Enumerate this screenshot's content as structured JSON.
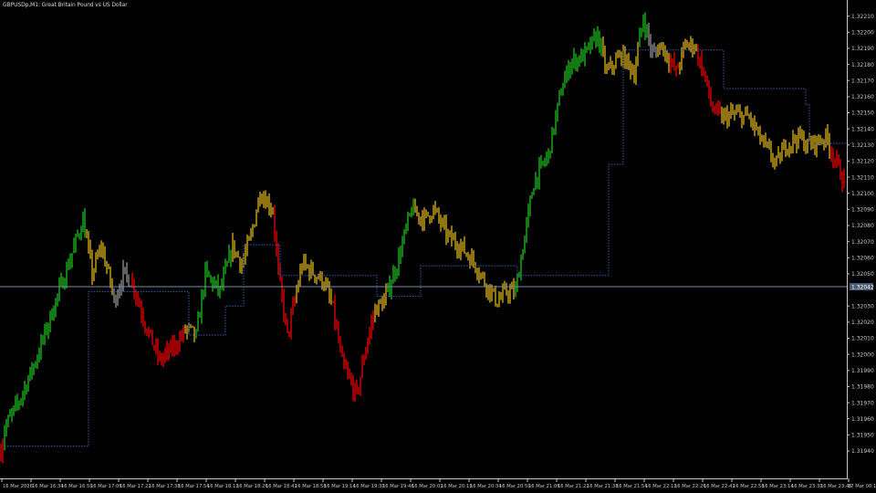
{
  "header": {
    "title": "GBPUSDp,M1:  Great Britain Pound vs US Dollar"
  },
  "chart_data": {
    "type": "bar",
    "title": "GBPUSDp,M1:  Great Britain Pound vs US Dollar",
    "background": "#000000",
    "grid": false,
    "ylim": [
      1.31923,
      1.3222
    ],
    "yticks": [
      "1.32210",
      "1.32200",
      "1.32190",
      "1.32180",
      "1.32170",
      "1.32160",
      "1.32150",
      "1.32140",
      "1.32130",
      "1.32120",
      "1.32110",
      "1.32100",
      "1.32090",
      "1.32080",
      "1.32070",
      "1.32060",
      "1.32050",
      "1.32040",
      "1.32030",
      "1.32020",
      "1.32010",
      "1.32000",
      "1.31990",
      "1.31980",
      "1.31970",
      "1.31960",
      "1.31950",
      "1.31940"
    ],
    "xticks": [
      "16 Mar 2026",
      "16 Mar 16:34",
      "16 Mar 16:50",
      "16 Mar 17:06",
      "16 Mar 17:22",
      "16 Mar 17:38",
      "16 Mar 17:54",
      "16 Mar 18:10",
      "16 Mar 18:26",
      "16 Mar 18:42",
      "16 Mar 18:58",
      "16 Mar 19:14",
      "16 Mar 19:30",
      "16 Mar 19:46",
      "16 Mar 20:02",
      "16 Mar 20:18",
      "16 Mar 20:34",
      "16 Mar 20:50",
      "16 Mar 21:06",
      "16 Mar 21:22",
      "16 Mar 21:38",
      "16 Mar 21:54",
      "16 Mar 22:10",
      "16 Mar 22:26",
      "16 Mar 22:42",
      "16 Mar 22:58",
      "16 Mar 23:14",
      "16 Mar 23:30",
      "16 Mar 23:46"
    ],
    "xtick_last": "17 Mar 00:15",
    "current_price": "1.32042",
    "current_price_value": 1.32042,
    "price_path": [
      [
        "16:18",
        1.3194
      ],
      [
        "16:20",
        1.31954
      ],
      [
        "16:28",
        1.31971
      ],
      [
        "16:38",
        1.31999
      ],
      [
        "16:48",
        1.32033
      ],
      [
        "16:55",
        1.32056
      ],
      [
        "17:03",
        1.32084
      ],
      [
        "17:08",
        1.3205
      ],
      [
        "17:13",
        1.32067
      ],
      [
        "17:18",
        1.32045
      ],
      [
        "17:20",
        1.32033
      ],
      [
        "17:25",
        1.3205
      ],
      [
        "17:30",
        1.32045
      ],
      [
        "17:38",
        1.32016
      ],
      [
        "17:45",
        1.31996
      ],
      [
        "17:53",
        1.32005
      ],
      [
        "18:00",
        1.32016
      ],
      [
        "18:05",
        1.32011
      ],
      [
        "18:10",
        1.3205
      ],
      [
        "18:18",
        1.32039
      ],
      [
        "18:25",
        1.32067
      ],
      [
        "18:30",
        1.32056
      ],
      [
        "18:35",
        1.32073
      ],
      [
        "18:40",
        1.32101
      ],
      [
        "18:47",
        1.3209
      ],
      [
        "18:50",
        1.3205
      ],
      [
        "18:55",
        1.32011
      ],
      [
        "18:58",
        1.32028
      ],
      [
        "19:03",
        1.32056
      ],
      [
        "19:10",
        1.3205
      ],
      [
        "19:15",
        1.32045
      ],
      [
        "19:20",
        1.32028
      ],
      [
        "19:25",
        1.31994
      ],
      [
        "19:33",
        1.31974
      ],
      [
        "19:38",
        1.32005
      ],
      [
        "19:43",
        1.32028
      ],
      [
        "19:48",
        1.32033
      ],
      [
        "19:55",
        1.32056
      ],
      [
        "20:03",
        1.3209
      ],
      [
        "20:10",
        1.32084
      ],
      [
        "20:15",
        1.3209
      ],
      [
        "20:23",
        1.32073
      ],
      [
        "20:30",
        1.32067
      ],
      [
        "20:38",
        1.32056
      ],
      [
        "20:43",
        1.32045
      ],
      [
        "20:50",
        1.32033
      ],
      [
        "20:55",
        1.32039
      ],
      [
        "21:00",
        1.32039
      ],
      [
        "21:05",
        1.32073
      ],
      [
        "21:10",
        1.32107
      ],
      [
        "21:18",
        1.32124
      ],
      [
        "21:25",
        1.32164
      ],
      [
        "21:30",
        1.32181
      ],
      [
        "21:38",
        1.32186
      ],
      [
        "21:45",
        1.32198
      ],
      [
        "21:50",
        1.32175
      ],
      [
        "21:58",
        1.32186
      ],
      [
        "22:05",
        1.32175
      ],
      [
        "22:10",
        1.32209
      ],
      [
        "22:15",
        1.32186
      ],
      [
        "22:20",
        1.32192
      ],
      [
        "22:28",
        1.32175
      ],
      [
        "22:33",
        1.32192
      ],
      [
        "22:38",
        1.32192
      ],
      [
        "22:43",
        1.32175
      ],
      [
        "22:48",
        1.32152
      ],
      [
        "22:53",
        1.32147
      ],
      [
        "23:00",
        1.32149
      ],
      [
        "23:08",
        1.32147
      ],
      [
        "23:15",
        1.32132
      ],
      [
        "23:23",
        1.32118
      ],
      [
        "23:28",
        1.3213
      ],
      [
        "23:35",
        1.32135
      ],
      [
        "23:40",
        1.3213
      ],
      [
        "23:45",
        1.32132
      ],
      [
        "23:50",
        1.32135
      ],
      [
        "23:55",
        1.32121
      ],
      [
        "00:00",
        1.32107
      ]
    ],
    "bar_colors": [
      [
        "16:18",
        "#ff0000"
      ],
      [
        "16:20",
        "#22cc22"
      ],
      [
        "17:05",
        "#f0c020"
      ],
      [
        "17:20",
        "#a0a0a0"
      ],
      [
        "17:30",
        "#ff0000"
      ],
      [
        "17:59",
        "#f0c020"
      ],
      [
        "18:05",
        "#22cc22"
      ],
      [
        "18:25",
        "#f0c020"
      ],
      [
        "18:48",
        "#ff0000"
      ],
      [
        "19:00",
        "#f0c020"
      ],
      [
        "19:20",
        "#ff0000"
      ],
      [
        "19:43",
        "#f0c020"
      ],
      [
        "19:50",
        "#22cc22"
      ],
      [
        "20:05",
        "#f0c020"
      ],
      [
        "21:00",
        "#22cc22"
      ],
      [
        "21:48",
        "#f0c020"
      ],
      [
        "22:08",
        "#22cc22"
      ],
      [
        "22:13",
        "#a0a0a0"
      ],
      [
        "22:18",
        "#f0c020"
      ],
      [
        "22:25",
        "#ff0000"
      ],
      [
        "22:30",
        "#f0c020"
      ],
      [
        "22:40",
        "#ff0000"
      ],
      [
        "22:53",
        "#f0c020"
      ],
      [
        "23:53",
        "#ff0000"
      ]
    ],
    "step_line": {
      "color": "#3a5fb0",
      "points": [
        [
          "16:20",
          1.31943
        ],
        [
          "17:06",
          1.32039
        ],
        [
          "18:01",
          1.32012
        ],
        [
          "18:21",
          1.3203
        ],
        [
          "18:31",
          1.32068
        ],
        [
          "18:51",
          1.32049
        ],
        [
          "19:44",
          1.32036
        ],
        [
          "20:08",
          1.32055
        ],
        [
          "21:01",
          1.32049
        ],
        [
          "21:51",
          1.32118
        ],
        [
          "21:59",
          1.32189
        ],
        [
          "22:54",
          1.32165
        ],
        [
          "23:39",
          1.32155
        ],
        [
          "23:41",
          1.32131
        ],
        [
          "00:05",
          1.32131
        ]
      ]
    }
  }
}
